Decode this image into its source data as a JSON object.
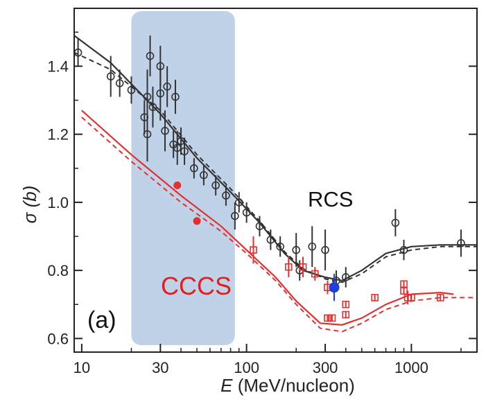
{
  "chart_data": {
    "type": "scatter",
    "title": "",
    "x_scale": "log",
    "xlim": [
      9,
      2500
    ],
    "ylim": [
      0.56,
      1.57
    ],
    "x_ticks": [
      10,
      30,
      100,
      300,
      1000
    ],
    "x_tick_labels": [
      "10",
      "30",
      "100",
      "300",
      "1000"
    ],
    "y_ticks": [
      0.6,
      0.8,
      1.0,
      1.2,
      1.4
    ],
    "y_tick_labels": [
      "0.6",
      "0.8",
      "1.0",
      "1.2",
      "1.4"
    ],
    "xlabel_var": "E",
    "xlabel_unit": " (MeV/nucleon)",
    "ylabel_sym": "σ",
    "ylabel_unit": "(b)",
    "panel_label": "(a)",
    "grid": false,
    "highlight_band": {
      "x_range": [
        20,
        85
      ],
      "color": "#b8cde6"
    },
    "series": [
      {
        "name": "RCS",
        "label_color": "#111111",
        "color": "#333333",
        "marker": "open-circle",
        "points": [
          {
            "x": 9.5,
            "y": 1.44,
            "err": 0.04
          },
          {
            "x": 15,
            "y": 1.37,
            "err": 0.06
          },
          {
            "x": 17,
            "y": 1.35,
            "err": 0.04
          },
          {
            "x": 20,
            "y": 1.33,
            "err": 0.04
          },
          {
            "x": 24,
            "y": 1.25,
            "err": 0.05
          },
          {
            "x": 25,
            "y": 1.2,
            "err": 0.08
          },
          {
            "x": 25,
            "y": 1.31,
            "err": 0.08
          },
          {
            "x": 26,
            "y": 1.43,
            "err": 0.06
          },
          {
            "x": 27,
            "y": 1.28,
            "err": 0.06
          },
          {
            "x": 30,
            "y": 1.32,
            "err": 0.08
          },
          {
            "x": 30,
            "y": 1.4,
            "err": 0.06
          },
          {
            "x": 32,
            "y": 1.21,
            "err": 0.06
          },
          {
            "x": 33,
            "y": 1.34,
            "err": 0.06
          },
          {
            "x": 36,
            "y": 1.17,
            "err": 0.04
          },
          {
            "x": 37,
            "y": 1.31,
            "err": 0.05
          },
          {
            "x": 38,
            "y": 1.16,
            "err": 0.05
          },
          {
            "x": 40,
            "y": 1.18,
            "err": 0.04
          },
          {
            "x": 42,
            "y": 1.15,
            "err": 0.04
          },
          {
            "x": 48,
            "y": 1.1,
            "err": 0.03
          },
          {
            "x": 55,
            "y": 1.08,
            "err": 0.03
          },
          {
            "x": 65,
            "y": 1.05,
            "err": 0.03
          },
          {
            "x": 75,
            "y": 1.02,
            "err": 0.03
          },
          {
            "x": 85,
            "y": 0.96,
            "err": 0.04
          },
          {
            "x": 90,
            "y": 1.0,
            "err": 0.03
          },
          {
            "x": 100,
            "y": 0.97,
            "err": 0.03
          },
          {
            "x": 120,
            "y": 0.93,
            "err": 0.03
          },
          {
            "x": 140,
            "y": 0.89,
            "err": 0.03
          },
          {
            "x": 160,
            "y": 0.87,
            "err": 0.03
          },
          {
            "x": 200,
            "y": 0.86,
            "err": 0.05
          },
          {
            "x": 210,
            "y": 0.8,
            "err": 0.03
          },
          {
            "x": 250,
            "y": 0.87,
            "err": 0.06
          },
          {
            "x": 300,
            "y": 0.86,
            "err": 0.06
          },
          {
            "x": 350,
            "y": 0.77,
            "err": 0.03
          },
          {
            "x": 400,
            "y": 0.78,
            "err": 0.03
          },
          {
            "x": 800,
            "y": 0.94,
            "err": 0.04
          },
          {
            "x": 900,
            "y": 0.86,
            "err": 0.03
          },
          {
            "x": 2000,
            "y": 0.88,
            "err": 0.04
          }
        ],
        "curve_solid": [
          [
            9,
            1.49
          ],
          [
            15,
            1.41
          ],
          [
            30,
            1.26
          ],
          [
            50,
            1.13
          ],
          [
            80,
            1.03
          ],
          [
            120,
            0.94
          ],
          [
            170,
            0.85
          ],
          [
            220,
            0.8
          ],
          [
            300,
            0.78
          ],
          [
            380,
            0.77
          ],
          [
            500,
            0.8
          ],
          [
            700,
            0.85
          ],
          [
            1000,
            0.87
          ],
          [
            1500,
            0.875
          ],
          [
            2500,
            0.875
          ]
        ],
        "curve_dashed": [
          [
            9,
            1.44
          ],
          [
            15,
            1.39
          ],
          [
            30,
            1.27
          ],
          [
            50,
            1.14
          ],
          [
            80,
            1.04
          ],
          [
            120,
            0.945
          ],
          [
            170,
            0.855
          ],
          [
            220,
            0.805
          ],
          [
            300,
            0.775
          ],
          [
            380,
            0.765
          ],
          [
            500,
            0.79
          ],
          [
            700,
            0.84
          ],
          [
            1000,
            0.86
          ],
          [
            1500,
            0.87
          ],
          [
            2500,
            0.87
          ]
        ]
      },
      {
        "name": "CCCS",
        "label_color": "#e02020",
        "color": "#e03030",
        "marker": "open-square",
        "points": [
          {
            "x": 38,
            "y": 1.05,
            "err": 0.01,
            "filled": true
          },
          {
            "x": 50,
            "y": 0.945,
            "err": 0.01,
            "filled": true
          },
          {
            "x": 110,
            "y": 0.86,
            "err": 0.04
          },
          {
            "x": 180,
            "y": 0.81,
            "err": 0.03
          },
          {
            "x": 220,
            "y": 0.81,
            "err": 0.03
          },
          {
            "x": 260,
            "y": 0.79,
            "err": 0.02
          },
          {
            "x": 310,
            "y": 0.75,
            "err": 0.02
          },
          {
            "x": 310,
            "y": 0.66,
            "err": 0.01
          },
          {
            "x": 330,
            "y": 0.66,
            "err": 0.01
          },
          {
            "x": 400,
            "y": 0.7,
            "err": 0.01
          },
          {
            "x": 400,
            "y": 0.67,
            "err": 0.01
          },
          {
            "x": 600,
            "y": 0.72,
            "err": 0.01
          },
          {
            "x": 900,
            "y": 0.76,
            "err": 0.01
          },
          {
            "x": 900,
            "y": 0.74,
            "err": 0.01
          },
          {
            "x": 950,
            "y": 0.72,
            "err": 0.02
          },
          {
            "x": 1000,
            "y": 0.72,
            "err": 0.01
          },
          {
            "x": 1500,
            "y": 0.72,
            "err": 0.01
          }
        ],
        "curve_solid": [
          [
            10,
            1.27
          ],
          [
            20,
            1.14
          ],
          [
            40,
            1.02
          ],
          [
            70,
            0.93
          ],
          [
            100,
            0.86
          ],
          [
            150,
            0.78
          ],
          [
            200,
            0.71
          ],
          [
            280,
            0.645
          ],
          [
            380,
            0.64
          ],
          [
            500,
            0.66
          ],
          [
            700,
            0.7
          ],
          [
            1000,
            0.73
          ],
          [
            1500,
            0.735
          ],
          [
            1800,
            0.73
          ]
        ],
        "curve_dashed": [
          [
            10,
            1.25
          ],
          [
            20,
            1.12
          ],
          [
            40,
            1.0
          ],
          [
            70,
            0.915
          ],
          [
            100,
            0.85
          ],
          [
            150,
            0.77
          ],
          [
            200,
            0.7
          ],
          [
            280,
            0.63
          ],
          [
            380,
            0.62
          ],
          [
            500,
            0.645
          ],
          [
            700,
            0.685
          ],
          [
            1000,
            0.71
          ],
          [
            1500,
            0.72
          ],
          [
            2500,
            0.72
          ]
        ]
      },
      {
        "name": "",
        "color": "#1f3fd6",
        "marker": "filled-circle",
        "points": [
          {
            "x": 340,
            "y": 0.75,
            "err": 0.04
          }
        ]
      }
    ]
  }
}
